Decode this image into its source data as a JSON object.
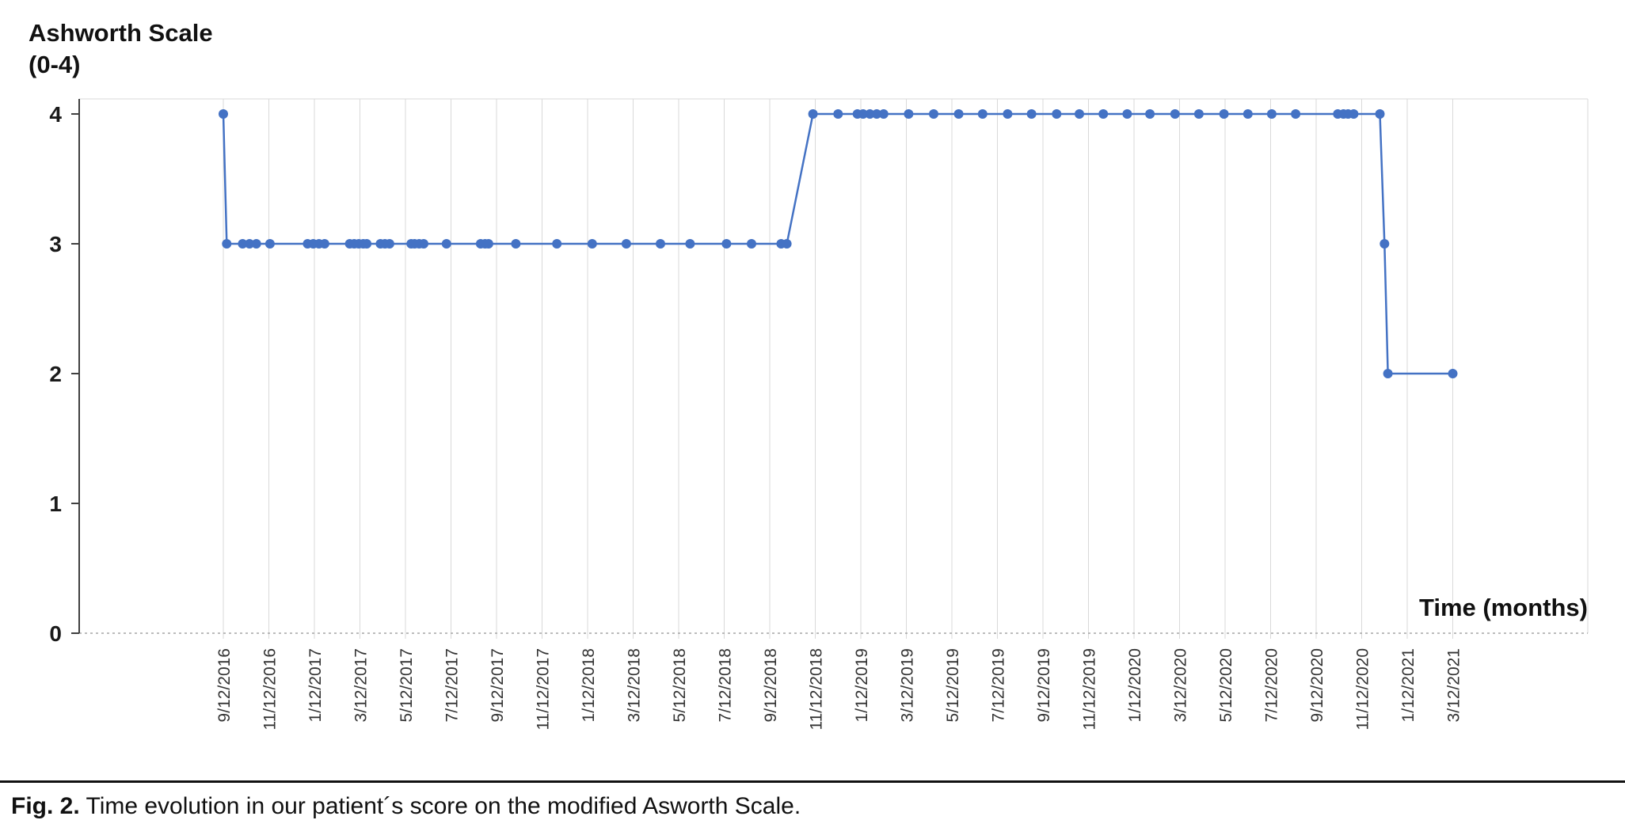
{
  "figure": {
    "y_axis_title_line1": "Ashworth Scale",
    "y_axis_title_line2": "(0-4)",
    "x_axis_title": "Time (months)",
    "caption_label": "Fig. 2.",
    "caption_text": "Time evolution in our patient´s score on the modified Asworth Scale."
  },
  "chart_data": {
    "type": "line",
    "title": "",
    "xlabel": "Time (months)",
    "ylabel": "Ashworth Scale (0-4)",
    "ylim": [
      0,
      4
    ],
    "y_ticks": [
      0,
      1,
      2,
      3,
      4
    ],
    "x_tick_labels": [
      "9/12/2016",
      "11/12/2016",
      "1/12/2017",
      "3/12/2017",
      "5/12/2017",
      "7/12/2017",
      "9/12/2017",
      "11/12/2017",
      "1/12/2018",
      "3/12/2018",
      "5/12/2018",
      "7/12/2018",
      "9/12/2018",
      "11/12/2018",
      "1/12/2019",
      "3/12/2019",
      "5/12/2019",
      "7/12/2019",
      "9/12/2019",
      "11/12/2019",
      "1/12/2020",
      "3/12/2020",
      "5/12/2020",
      "7/12/2020",
      "9/12/2020",
      "11/12/2020",
      "1/12/2021",
      "3/12/2021"
    ],
    "x_encoding": "x = months since 9/12/2016; one x tick every 2 months",
    "grid": "vertical gridlines at each x tick; dashed baseline at y=0; no horizontal gridlines",
    "legend": "none",
    "marker": "filled circle",
    "series": [
      {
        "name": "Modified Ashworth Scale score",
        "points": [
          [
            0,
            4
          ],
          [
            0.15,
            3
          ],
          [
            0.85,
            3
          ],
          [
            1.15,
            3
          ],
          [
            1.45,
            3
          ],
          [
            2.05,
            3
          ],
          [
            3.7,
            3
          ],
          [
            3.95,
            3
          ],
          [
            4.2,
            3
          ],
          [
            4.45,
            3
          ],
          [
            5.55,
            3
          ],
          [
            5.75,
            3
          ],
          [
            5.95,
            3
          ],
          [
            6.15,
            3
          ],
          [
            6.3,
            3
          ],
          [
            6.9,
            3
          ],
          [
            7.1,
            3
          ],
          [
            7.3,
            3
          ],
          [
            8.25,
            3
          ],
          [
            8.4,
            3
          ],
          [
            8.6,
            3
          ],
          [
            8.8,
            3
          ],
          [
            9.8,
            3
          ],
          [
            11.3,
            3
          ],
          [
            11.5,
            3
          ],
          [
            11.65,
            3
          ],
          [
            12.85,
            3
          ],
          [
            14.65,
            3
          ],
          [
            16.2,
            3
          ],
          [
            17.7,
            3
          ],
          [
            19.2,
            3
          ],
          [
            20.5,
            3
          ],
          [
            22.1,
            3
          ],
          [
            23.2,
            3
          ],
          [
            24.5,
            3
          ],
          [
            24.75,
            3
          ],
          [
            25.9,
            4
          ],
          [
            27.0,
            4
          ],
          [
            27.85,
            4
          ],
          [
            28.1,
            4
          ],
          [
            28.4,
            4
          ],
          [
            28.7,
            4
          ],
          [
            29.0,
            4
          ],
          [
            30.1,
            4
          ],
          [
            31.2,
            4
          ],
          [
            32.3,
            4
          ],
          [
            33.35,
            4
          ],
          [
            34.45,
            4
          ],
          [
            35.5,
            4
          ],
          [
            36.6,
            4
          ],
          [
            37.6,
            4
          ],
          [
            38.65,
            4
          ],
          [
            39.7,
            4
          ],
          [
            40.7,
            4
          ],
          [
            41.8,
            4
          ],
          [
            42.85,
            4
          ],
          [
            43.95,
            4
          ],
          [
            45.0,
            4
          ],
          [
            46.05,
            4
          ],
          [
            47.1,
            4
          ],
          [
            48.95,
            4
          ],
          [
            49.2,
            4
          ],
          [
            49.4,
            4
          ],
          [
            49.65,
            4
          ],
          [
            50.8,
            4
          ],
          [
            51.0,
            3
          ],
          [
            51.15,
            2
          ],
          [
            54.0,
            2
          ]
        ]
      }
    ],
    "colors": {
      "line": "#4472C4",
      "marker": "#4472C4",
      "grid": "#D9D9D9",
      "axis": "#404040",
      "baseline": "#A6A6A6",
      "tick_label": "#333333",
      "y_tick_label": "#1a1a1a"
    }
  }
}
